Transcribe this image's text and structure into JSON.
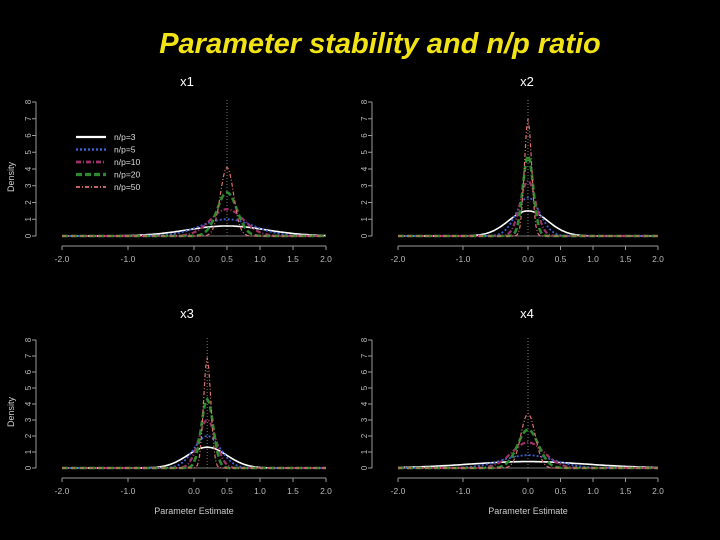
{
  "slide": {
    "title": "Parameter stability and n/p ratio"
  },
  "legend_labels": [
    "n/p=3",
    "n/p=5",
    "n/p=10",
    "n/p=20",
    "n/p=50"
  ],
  "series_colors": [
    "#ffffff",
    "#3a5fd0",
    "#a0306a",
    "#2d8a2d",
    "#e07070"
  ],
  "chart_data": [
    {
      "type": "line",
      "title": "x1",
      "xlabel": "",
      "ylabel": "Density",
      "xlim": [
        -2.0,
        2.0
      ],
      "ylim": [
        0,
        8
      ],
      "xticks": [
        "-2.0",
        "-1.0",
        "0.0",
        "0.5",
        "1.0",
        "1.5",
        "2.0"
      ],
      "yticks": [
        "0",
        "1",
        "2",
        "3",
        "4",
        "5",
        "6",
        "7",
        "8"
      ],
      "legend": "top-left",
      "center": 0.5,
      "series": [
        {
          "name": "n/p=3",
          "peak": 0.6,
          "sd": 0.6
        },
        {
          "name": "n/p=5",
          "peak": 1.0,
          "sd": 0.4
        },
        {
          "name": "n/p=10",
          "peak": 1.6,
          "sd": 0.25
        },
        {
          "name": "n/p=20",
          "peak": 2.6,
          "sd": 0.15
        },
        {
          "name": "n/p=50",
          "peak": 4.1,
          "sd": 0.1
        }
      ]
    },
    {
      "type": "line",
      "title": "x2",
      "xlabel": "",
      "ylabel": "",
      "xlim": [
        -2.0,
        2.0
      ],
      "ylim": [
        0,
        8
      ],
      "xticks": [
        "-2.0",
        "-1.0",
        "0.0",
        "0.5",
        "1.0",
        "1.5",
        "2.0"
      ],
      "yticks": [
        "0",
        "1",
        "2",
        "3",
        "4",
        "5",
        "6",
        "7",
        "8"
      ],
      "legend": "none",
      "center": 0.0,
      "series": [
        {
          "name": "n/p=3",
          "peak": 1.5,
          "sd": 0.3
        },
        {
          "name": "n/p=5",
          "peak": 2.3,
          "sd": 0.18
        },
        {
          "name": "n/p=10",
          "peak": 3.3,
          "sd": 0.12
        },
        {
          "name": "n/p=20",
          "peak": 4.8,
          "sd": 0.08
        },
        {
          "name": "n/p=50",
          "peak": 7.0,
          "sd": 0.055
        }
      ]
    },
    {
      "type": "line",
      "title": "x3",
      "xlabel": "Parameter Estimate",
      "ylabel": "Density",
      "xlim": [
        -2.0,
        2.0
      ],
      "ylim": [
        0,
        8
      ],
      "xticks": [
        "-2.0",
        "-1.0",
        "0.0",
        "0.5",
        "1.0",
        "1.5",
        "2.0"
      ],
      "yticks": [
        "0",
        "1",
        "2",
        "3",
        "4",
        "5",
        "6",
        "7",
        "8"
      ],
      "legend": "none",
      "center": 0.2,
      "series": [
        {
          "name": "n/p=3",
          "peak": 1.3,
          "sd": 0.3
        },
        {
          "name": "n/p=5",
          "peak": 2.0,
          "sd": 0.2
        },
        {
          "name": "n/p=10",
          "peak": 3.0,
          "sd": 0.13
        },
        {
          "name": "n/p=20",
          "peak": 4.3,
          "sd": 0.09
        },
        {
          "name": "n/p=50",
          "peak": 6.9,
          "sd": 0.055
        }
      ]
    },
    {
      "type": "line",
      "title": "x4",
      "xlabel": "Parameter Estimate",
      "ylabel": "",
      "xlim": [
        -2.0,
        2.0
      ],
      "ylim": [
        0,
        8
      ],
      "xticks": [
        "-2.0",
        "-1.0",
        "0.0",
        "0.5",
        "1.0",
        "1.5",
        "2.0"
      ],
      "yticks": [
        "0",
        "1",
        "2",
        "3",
        "4",
        "5",
        "6",
        "7",
        "8"
      ],
      "legend": "none",
      "center": 0.0,
      "series": [
        {
          "name": "n/p=3",
          "peak": 0.4,
          "sd": 0.9
        },
        {
          "name": "n/p=5",
          "peak": 0.8,
          "sd": 0.4
        },
        {
          "name": "n/p=10",
          "peak": 1.6,
          "sd": 0.25
        },
        {
          "name": "n/p=20",
          "peak": 2.4,
          "sd": 0.16
        },
        {
          "name": "n/p=50",
          "peak": 3.4,
          "sd": 0.11
        }
      ]
    }
  ]
}
